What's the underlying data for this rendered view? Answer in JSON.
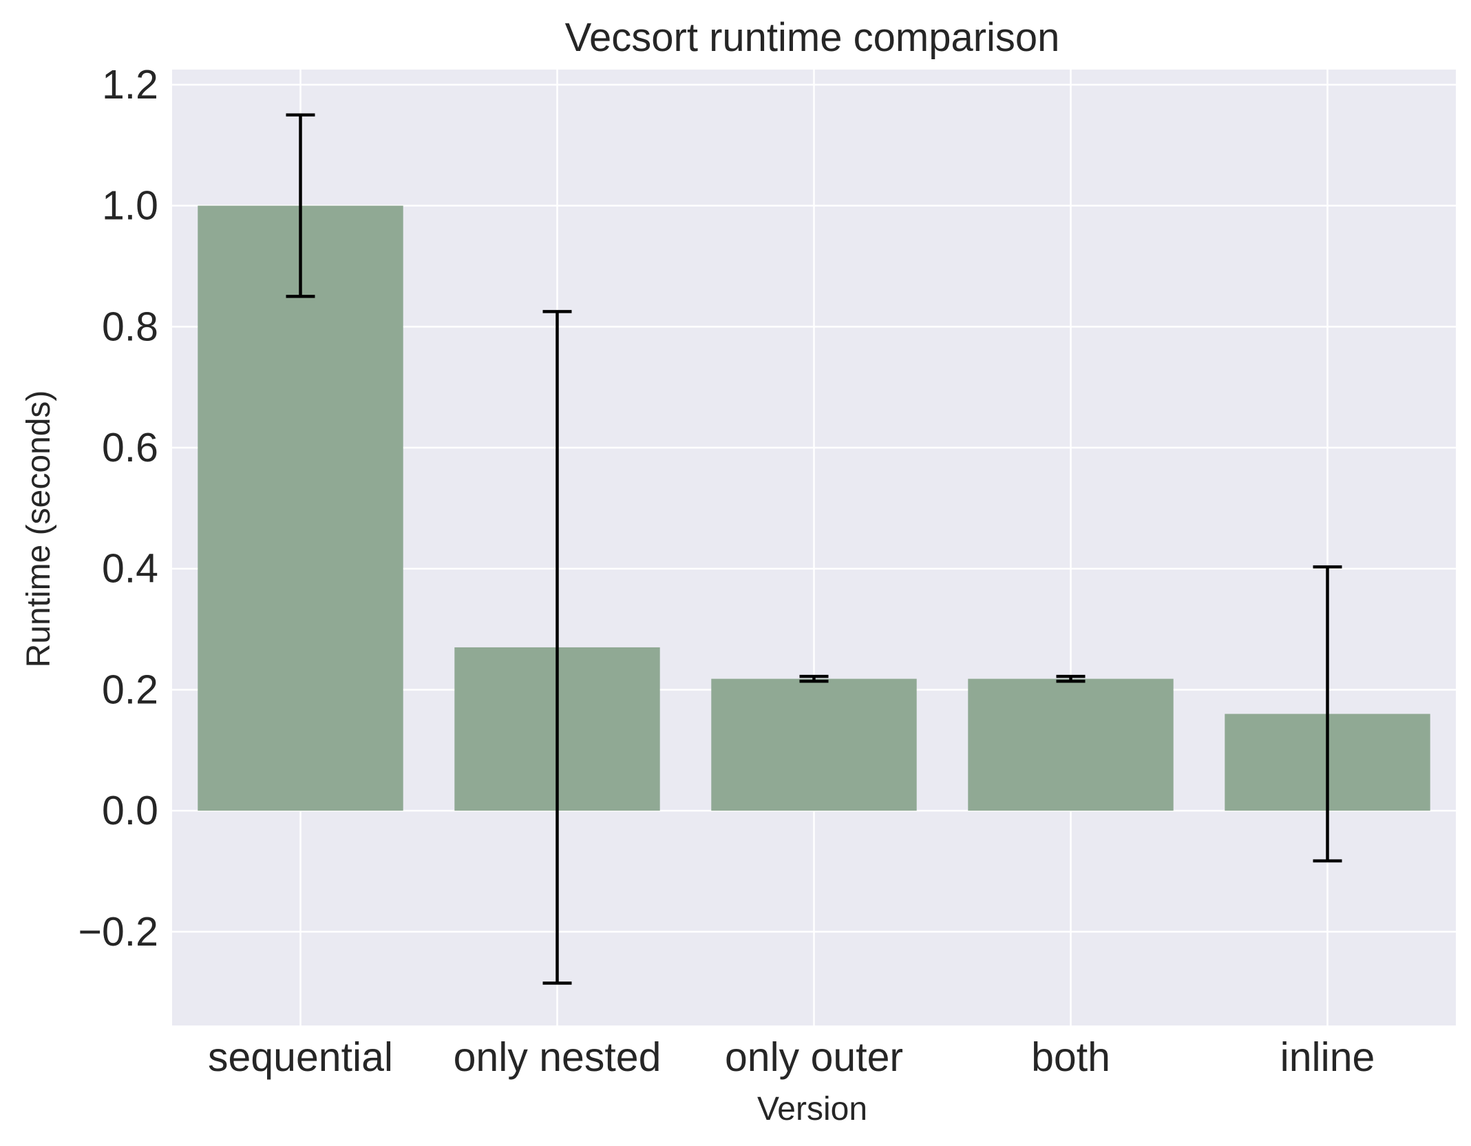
{
  "chart_data": {
    "type": "bar",
    "title": "Vecsort runtime comparison",
    "xlabel": "Version",
    "ylabel": "Runtime (seconds)",
    "categories": [
      "sequential",
      "only nested",
      "only outer",
      "both",
      "inline"
    ],
    "values": [
      1.0,
      0.27,
      0.218,
      0.218,
      0.16
    ],
    "errors": [
      0.15,
      0.555,
      0.004,
      0.004,
      0.243
    ],
    "ylim": [
      -0.355,
      1.225
    ],
    "yticks": [
      -0.2,
      0.0,
      0.2,
      0.4,
      0.6,
      0.8,
      1.0,
      1.2
    ],
    "ytick_labels": [
      "−0.2",
      "0.0",
      "0.2",
      "0.4",
      "0.6",
      "0.8",
      "1.0",
      "1.2"
    ],
    "grid": true,
    "legend": "none",
    "colors": {
      "bar": "#90a994",
      "plot_background": "#eaeaf2",
      "grid": "#ffffff",
      "error_bar": "#000000",
      "text": "#262626"
    }
  }
}
